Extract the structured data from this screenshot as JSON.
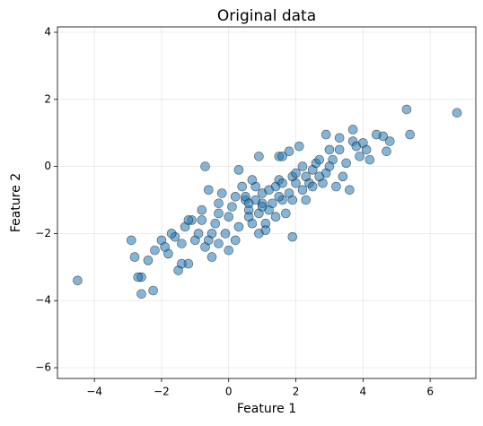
{
  "chart_data": {
    "type": "scatter",
    "title": "Original data",
    "xlabel": "Feature 1",
    "ylabel": "Feature 2",
    "xlim": [
      -5.1,
      7.36
    ],
    "ylim": [
      -6.32,
      4.16
    ],
    "xticks": [
      {
        "value": -4,
        "label": "−4"
      },
      {
        "value": -2,
        "label": "−2"
      },
      0,
      2,
      4,
      6
    ],
    "yticks": [
      {
        "value": -6,
        "label": "−6"
      },
      {
        "value": -4,
        "label": "−4"
      },
      {
        "value": -2,
        "label": "−2"
      },
      0,
      2,
      4
    ],
    "grid": true,
    "series": [
      {
        "color": "#1f77b4",
        "x": [
          -4.5,
          6.8,
          5.3,
          5.4,
          4.6,
          4.4,
          4.8,
          4.7,
          3.7,
          3.7,
          3.3,
          2.9,
          2.1,
          1.8,
          0.3,
          -0.7,
          0.9,
          1.5,
          -2.6,
          -2.25,
          -2.6,
          -1.5,
          -1.2,
          -2.8,
          -2.9,
          -2.2,
          -2.4,
          -2.0,
          -1.8,
          -1.6,
          -1.3,
          -1.0,
          -0.8,
          -0.5,
          -0.3,
          0.0,
          0.2,
          0.5,
          0.7,
          1.0,
          1.2,
          1.4,
          1.6,
          1.9,
          2.2,
          2.5,
          2.8,
          3.1,
          3.4,
          3.9,
          4.1,
          -1.1,
          -0.9,
          -0.6,
          -0.4,
          -0.2,
          0.1,
          0.3,
          0.6,
          0.8,
          1.1,
          1.3,
          1.5,
          1.7,
          2.0,
          2.3,
          2.6,
          2.9,
          3.2,
          3.5,
          3.8,
          4.2,
          -1.4,
          -0.7,
          -0.1,
          0.4,
          0.9,
          1.4,
          1.9,
          2.4,
          2.7,
          3.0,
          3.6,
          -0.5,
          0.0,
          0.5,
          1.0,
          1.5,
          2.0,
          2.5,
          3.0,
          0.6,
          1.2,
          1.8,
          2.2,
          -0.3,
          0.2,
          0.8,
          1.6,
          -1.9,
          -1.7,
          -1.2,
          -0.8,
          0.7,
          1.1,
          -0.6,
          -2.7,
          -1.4,
          0.9,
          1.0,
          1.9,
          2.7,
          3.3,
          4.0,
          -0.3,
          0.6,
          2.3,
          1.6
        ],
        "values": [
          -3.4,
          1.6,
          1.7,
          0.95,
          0.9,
          0.95,
          0.75,
          0.45,
          1.1,
          0.75,
          0.85,
          0.95,
          0.6,
          0.45,
          -0.1,
          0.0,
          0.3,
          0.3,
          -3.8,
          -3.7,
          -3.3,
          -3.1,
          -2.9,
          -2.7,
          -2.2,
          -2.5,
          -2.8,
          -2.2,
          -2.6,
          -2.1,
          -1.8,
          -2.2,
          -1.6,
          -2.0,
          -1.1,
          -1.5,
          -2.2,
          -1.0,
          -1.7,
          -0.8,
          -1.3,
          -0.6,
          -1.0,
          -0.3,
          -0.7,
          -0.1,
          -0.5,
          0.2,
          -0.3,
          0.3,
          0.5,
          -1.6,
          -2.0,
          -0.7,
          -1.7,
          -0.8,
          -1.2,
          -1.8,
          -1.3,
          -0.6,
          -1.7,
          -1.1,
          -0.4,
          -1.4,
          -0.5,
          -1.0,
          0.1,
          -0.2,
          -0.6,
          0.1,
          0.6,
          0.2,
          -2.3,
          -2.4,
          -2.0,
          -0.6,
          -2.0,
          -1.5,
          -2.1,
          -0.5,
          -0.3,
          0.5,
          -0.7,
          -2.7,
          -2.5,
          -0.9,
          -1.1,
          -0.9,
          -0.2,
          -0.6,
          0.0,
          -1.5,
          -0.7,
          -0.8,
          0.0,
          -1.4,
          -0.9,
          -1.0,
          0.3,
          -2.4,
          -2.0,
          -1.6,
          -1.3,
          -0.4,
          -1.9,
          -2.2,
          -3.3,
          -2.9,
          -1.4,
          -1.2,
          -1.0,
          0.2,
          0.5,
          0.7,
          -2.3,
          -1.1,
          -0.3,
          -0.5
        ]
      }
    ]
  }
}
